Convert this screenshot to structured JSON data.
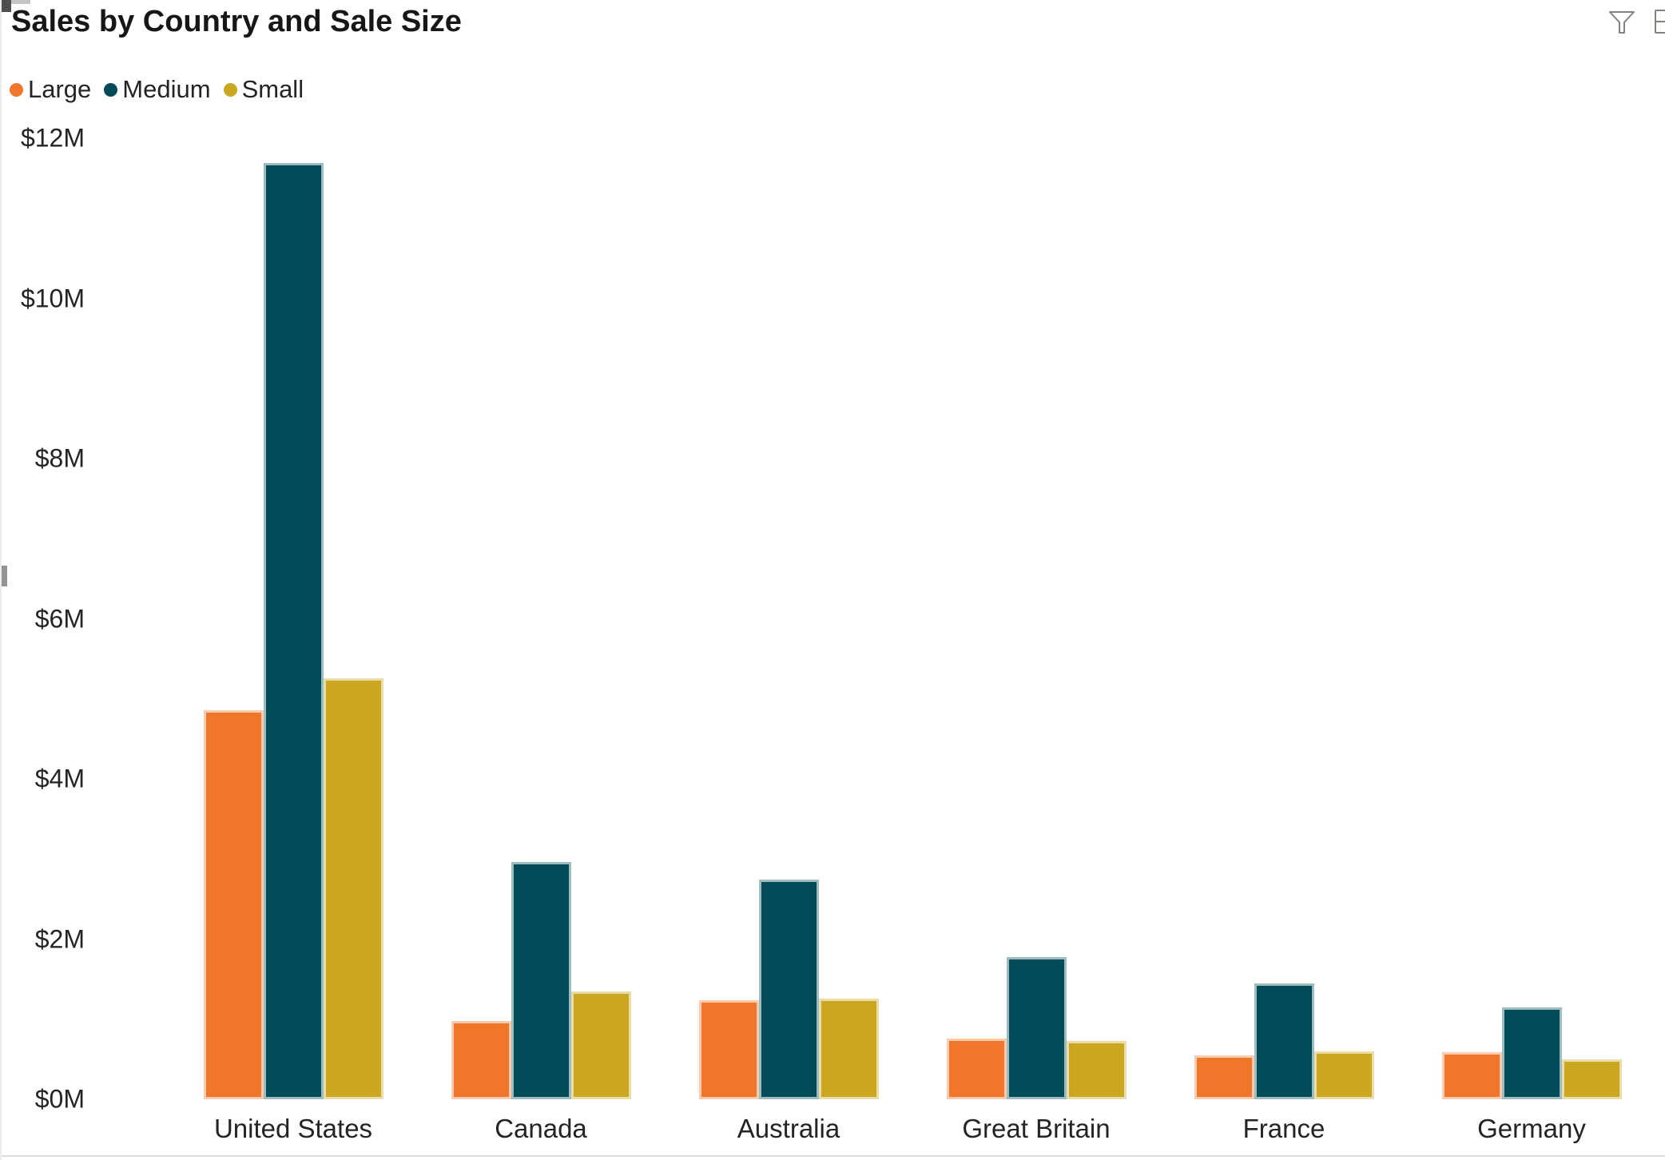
{
  "visual": {
    "title": "Sales by Country and Sale Size",
    "toolbar_icons": [
      {
        "name": "filter-icon",
        "shape": "funnel-outline"
      },
      {
        "name": "focus-mode-icon-clipped",
        "shape": "partial-rectangle-at-right-edge"
      }
    ]
  },
  "legend": {
    "position": "top-left",
    "items": [
      {
        "label": "Large",
        "color": "#f0762c"
      },
      {
        "label": "Medium",
        "color": "#014b58"
      },
      {
        "label": "Small",
        "color": "#cba621"
      }
    ]
  },
  "chart_data": {
    "type": "bar",
    "title": "Sales by Country and Sale Size",
    "categories": [
      "United States",
      "Canada",
      "Australia",
      "Great Britain",
      "France",
      "Germany"
    ],
    "series": [
      {
        "name": "Large",
        "color": "#f0762c",
        "values": [
          4.86,
          0.98,
          1.24,
          0.76,
          0.55,
          0.59
        ]
      },
      {
        "name": "Medium",
        "color": "#014b58",
        "values": [
          11.69,
          2.96,
          2.74,
          1.78,
          1.45,
          1.15
        ]
      },
      {
        "name": "Small",
        "color": "#cba621",
        "values": [
          5.26,
          1.35,
          1.26,
          0.73,
          0.6,
          0.5
        ]
      }
    ],
    "value_unit": "USD millions",
    "yticks": [
      {
        "value": 0,
        "label": "$0M"
      },
      {
        "value": 2,
        "label": "$2M"
      },
      {
        "value": 4,
        "label": "$4M"
      },
      {
        "value": 6,
        "label": "$6M"
      },
      {
        "value": 8,
        "label": "$8M"
      },
      {
        "value": 10,
        "label": "$10M"
      },
      {
        "value": 12,
        "label": "$12M"
      }
    ],
    "ylim": [
      0,
      12
    ],
    "xlabel": "",
    "ylabel": "",
    "grid": false,
    "legend_position": "top-left"
  }
}
